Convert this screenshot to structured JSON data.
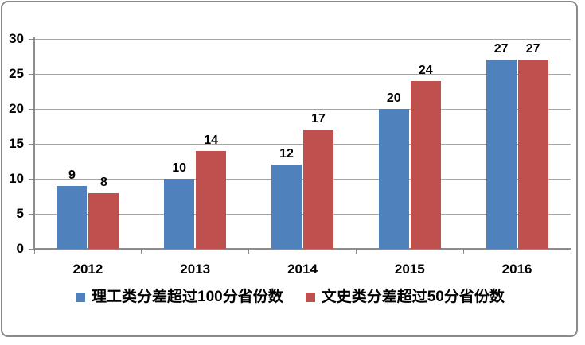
{
  "chart_data": {
    "type": "bar",
    "title": "",
    "categories": [
      "2012",
      "2013",
      "2014",
      "2015",
      "2016"
    ],
    "series": [
      {
        "name": "理工类分差超过100分省份数",
        "color": "#4F81BD",
        "values": [
          9,
          10,
          12,
          20,
          27
        ]
      },
      {
        "name": "文史类分差超过50分省份数",
        "color": "#C0504D",
        "values": [
          8,
          14,
          17,
          24,
          27
        ]
      }
    ],
    "ylim": [
      0,
      30
    ],
    "yticks": [
      0,
      5,
      10,
      15,
      20,
      25,
      30
    ],
    "grid": true,
    "data_labels": true,
    "legend_position": "bottom"
  },
  "colors": {
    "series1": "#4F81BD",
    "series2": "#C0504D",
    "gridline": "#A6A6A6",
    "axis": "#8C8C8C",
    "text": "#000000",
    "frame_border": "#8A8A8A",
    "background": "#FFFFFF"
  }
}
